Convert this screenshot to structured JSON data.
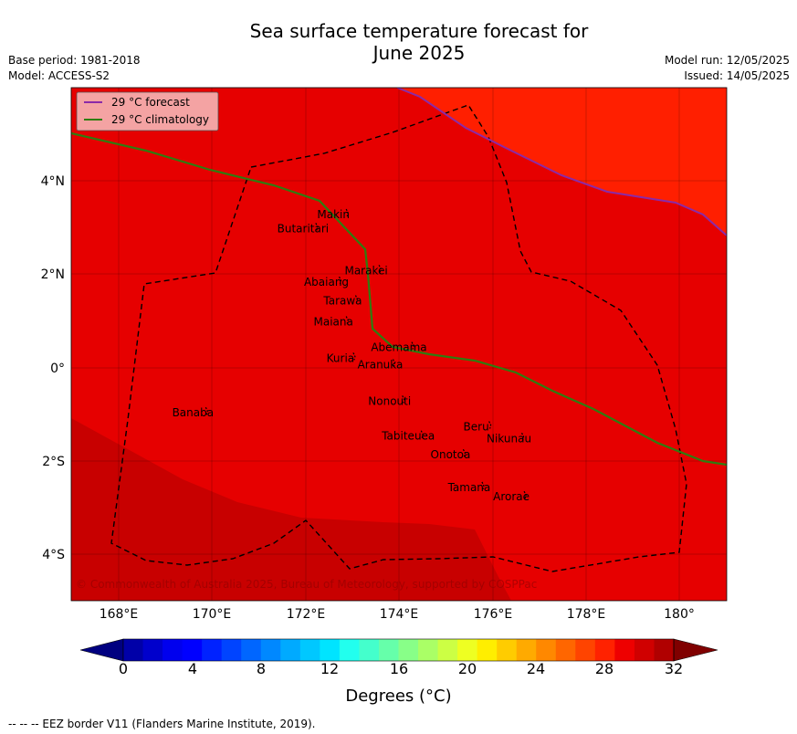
{
  "header": {
    "title_line1": "Sea surface temperature forecast for",
    "title_line2": "June 2025",
    "base_period": "Base period: 1981-2018",
    "model": "Model: ACCESS-S2",
    "model_run": "Model run: 12/05/2025",
    "issued": "Issued: 14/05/2025"
  },
  "legend": {
    "forecast_label": "29 °C  forecast",
    "climatology_label": "29 °C  climatology",
    "forecast_color": "#8b2aa8",
    "climatology_color": "#2e7d10"
  },
  "map": {
    "copyright": "© Commonwealth of Australia 2025, Bureau of Meteorology, supported by COSPPac",
    "x_ticks": [
      "168°E",
      "170°E",
      "172°E",
      "174°E",
      "176°E",
      "178°E",
      "180°"
    ],
    "y_ticks": [
      "4°N",
      "2°N",
      "0°",
      "2°S",
      "4°S"
    ],
    "lon_range": [
      167,
      181
    ],
    "lat_range": [
      -5,
      6
    ],
    "places": [
      {
        "name": "Makin",
        "lon": 172.6,
        "lat": 3.2
      },
      {
        "name": "Butaritari",
        "lon": 171.95,
        "lat": 2.9
      },
      {
        "name": "Marakei",
        "lon": 173.3,
        "lat": 2.0
      },
      {
        "name": "Abaiang",
        "lon": 172.45,
        "lat": 1.75
      },
      {
        "name": "Tarawa",
        "lon": 172.8,
        "lat": 1.35
      },
      {
        "name": "Maiana",
        "lon": 172.6,
        "lat": 0.9
      },
      {
        "name": "Abemama",
        "lon": 174.0,
        "lat": 0.35
      },
      {
        "name": "Kuria",
        "lon": 172.75,
        "lat": 0.12
      },
      {
        "name": "Aranuka",
        "lon": 173.6,
        "lat": -0.02
      },
      {
        "name": "Nonouti",
        "lon": 173.8,
        "lat": -0.8
      },
      {
        "name": "Banaba",
        "lon": 169.6,
        "lat": -1.05
      },
      {
        "name": "Tabiteuea",
        "lon": 174.2,
        "lat": -1.55
      },
      {
        "name": "Beru",
        "lon": 175.65,
        "lat": -1.35
      },
      {
        "name": "Nikunau",
        "lon": 176.35,
        "lat": -1.6
      },
      {
        "name": "Onotoa",
        "lon": 175.1,
        "lat": -1.95
      },
      {
        "name": "Tamana",
        "lon": 175.5,
        "lat": -2.65
      },
      {
        "name": "Arorae",
        "lon": 176.4,
        "lat": -2.85
      }
    ]
  },
  "colorbar": {
    "ticks": [
      "0",
      "4",
      "8",
      "12",
      "16",
      "20",
      "24",
      "28",
      "32"
    ],
    "range": [
      0,
      32
    ],
    "title": "Degrees (°C)",
    "colors": [
      "#000080",
      "#0000a8",
      "#0000cc",
      "#0000ee",
      "#0000ff",
      "#0022ff",
      "#0044ff",
      "#0066ff",
      "#0088ff",
      "#00aaff",
      "#00c8ff",
      "#00e4ff",
      "#22ffee",
      "#44ffcc",
      "#66ffaa",
      "#88ff88",
      "#aaff66",
      "#ccff44",
      "#eeff22",
      "#ffee00",
      "#ffcc00",
      "#ffaa00",
      "#ff8800",
      "#ff6600",
      "#ff4400",
      "#ff2200",
      "#ee0000",
      "#d00000",
      "#b00000",
      "#800000"
    ]
  },
  "footnote": "--  --  -- EEZ border V11 (Flanders Marine Institute, 2019).",
  "colors": {
    "sst_warm": "#e60000",
    "sst_hot": "#ff1f00",
    "sst_cooler": "#c80000"
  }
}
